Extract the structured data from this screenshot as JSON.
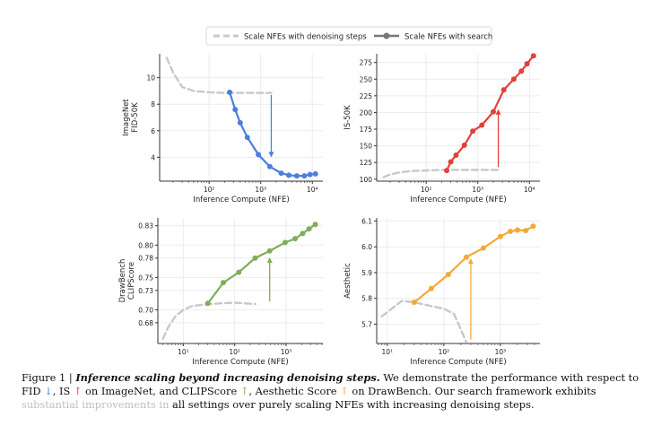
{
  "legend": {
    "dashed_label": "Scale NFEs with denoising steps",
    "search_label": "Scale NFEs with search"
  },
  "colors": {
    "fid": "#4a7fe0",
    "is": "#e0413a",
    "clip": "#7fae58",
    "aesthetic": "#f2a93b",
    "dashed": "#c8c8c8"
  },
  "chart_data": [
    {
      "id": "fid",
      "type": "line",
      "ylabel_lines": [
        "ImageNet",
        "FID-50K"
      ],
      "xlabel": "Inference Compute (NFE)",
      "xscale": "log",
      "xlim": [
        11,
        16000
      ],
      "ylim": [
        2.2,
        11.8
      ],
      "yticks": [
        4,
        6,
        8,
        10
      ],
      "ytick_labels": [
        "4",
        "6",
        "8",
        "10"
      ],
      "xticks": [
        100,
        1000,
        10000
      ],
      "xtick_labels": [
        "10²",
        "10³",
        "10⁴"
      ],
      "baseline": {
        "x": [
          15,
          20,
          30,
          50,
          100,
          200,
          400,
          1000,
          1600
        ],
        "y": [
          11.5,
          10.4,
          9.3,
          9.0,
          8.9,
          8.85,
          8.85,
          8.85,
          8.85
        ]
      },
      "search": {
        "x": [
          250,
          320,
          400,
          550,
          900,
          1500,
          2500,
          3500,
          5000,
          7000,
          9000,
          11500
        ],
        "y": [
          8.9,
          7.6,
          6.6,
          5.5,
          4.2,
          3.3,
          2.8,
          2.65,
          2.6,
          2.6,
          2.7,
          2.75
        ]
      },
      "arrow": {
        "x": 1600,
        "from": 8.7,
        "to": 4.0,
        "direction": "down"
      }
    },
    {
      "id": "is",
      "type": "line",
      "ylabel_lines": [
        "IS-50K"
      ],
      "xlabel": "Inference Compute (NFE)",
      "xscale": "log",
      "xlim": [
        11,
        16000
      ],
      "ylim": [
        97,
        288
      ],
      "yticks": [
        100,
        125,
        150,
        175,
        200,
        225,
        250,
        275
      ],
      "ytick_labels": [
        "100",
        "125",
        "150",
        "175",
        "200",
        "225",
        "250",
        "275"
      ],
      "xticks": [
        100,
        1000,
        10000
      ],
      "xtick_labels": [
        "10²",
        "10³",
        "10⁴"
      ],
      "baseline": {
        "x": [
          15,
          20,
          30,
          50,
          100,
          200,
          400,
          1000,
          2500
        ],
        "y": [
          103,
          107,
          110,
          112,
          113,
          114,
          114,
          114,
          114
        ]
      },
      "search": {
        "x": [
          250,
          300,
          380,
          550,
          800,
          1200,
          2000,
          3200,
          5000,
          7000,
          9000,
          12000
        ],
        "y": [
          113,
          126,
          136,
          151,
          172,
          181,
          201,
          234,
          250,
          262,
          273,
          285
        ]
      },
      "arrow": {
        "x": 2500,
        "from": 118,
        "to": 205,
        "direction": "up"
      }
    },
    {
      "id": "clip",
      "type": "line",
      "ylabel_lines": [
        "DrawBench",
        "CLIPScore"
      ],
      "xlabel": "Inference Compute (NFE)",
      "xscale": "log",
      "xlim": [
        3.2,
        5200
      ],
      "ylim": [
        0.648,
        0.842
      ],
      "yticks": [
        0.68,
        0.7,
        0.73,
        0.75,
        0.78,
        0.8,
        0.83
      ],
      "ytick_labels": [
        "0.68",
        "0.70",
        "0.73",
        "0.75",
        "0.78",
        "0.80",
        "0.83"
      ],
      "xticks": [
        10,
        100,
        1000
      ],
      "xtick_labels": [
        "10¹",
        "10²",
        "10³"
      ],
      "baseline": {
        "x": [
          4,
          5,
          7,
          10,
          15,
          25,
          50,
          100,
          250
        ],
        "y": [
          0.655,
          0.672,
          0.69,
          0.7,
          0.706,
          0.708,
          0.71,
          0.711,
          0.709
        ]
      },
      "search": {
        "x": [
          30,
          60,
          120,
          250,
          480,
          960,
          1500,
          2100,
          2800,
          3700
        ],
        "y": [
          0.71,
          0.742,
          0.758,
          0.78,
          0.791,
          0.804,
          0.81,
          0.818,
          0.825,
          0.832
        ]
      },
      "arrow": {
        "x": 480,
        "from": 0.713,
        "to": 0.781,
        "direction": "up"
      }
    },
    {
      "id": "aesthetic",
      "type": "line",
      "ylabel_lines": [
        "Aesthetic"
      ],
      "xlabel": "Inference Compute (NFE)",
      "xscale": "log",
      "xlim": [
        6.5,
        5000
      ],
      "ylim": [
        5.625,
        6.112
      ],
      "yticks": [
        5.7,
        5.8,
        5.9,
        6.0,
        6.1
      ],
      "ytick_labels": [
        "5.7",
        "5.8",
        "5.9",
        "6.0",
        "6.1"
      ],
      "xticks": [
        10,
        100,
        1000
      ],
      "xtick_labels": [
        "10¹",
        "10²",
        "10³"
      ],
      "baseline": {
        "x": [
          8,
          12,
          18,
          30,
          60,
          100,
          150,
          200,
          250
        ],
        "y": [
          5.73,
          5.76,
          5.79,
          5.785,
          5.77,
          5.76,
          5.74,
          5.68,
          5.63
        ]
      },
      "search": {
        "x": [
          30,
          60,
          120,
          250,
          500,
          1000,
          1500,
          2000,
          2800,
          3800
        ],
        "y": [
          5.785,
          5.838,
          5.893,
          5.96,
          5.995,
          6.04,
          6.06,
          6.065,
          6.063,
          6.08
        ]
      },
      "arrow": {
        "x": 300,
        "from": 5.64,
        "to": 5.955,
        "direction": "up"
      }
    }
  ],
  "caption": {
    "fig_label": "Figure 1 | ",
    "title": "Inference scaling beyond increasing denoising steps.",
    "body_1": " We demonstrate the performance with respect to FID ",
    "fid_arrow": "↓",
    "body_2": ", IS ",
    "is_arrow": "↑",
    "body_3": " on ImageNet, and CLIPScore ",
    "clip_arrow": "↑",
    "body_4": ", Aesthetic Score ",
    "aes_arrow": "↑",
    "body_5": " on DrawBench. Our search framework exhibits ",
    "body_6": "substantial improvements in",
    "body_7": " all settings over purely scaling NFEs with increasing denoising steps."
  }
}
